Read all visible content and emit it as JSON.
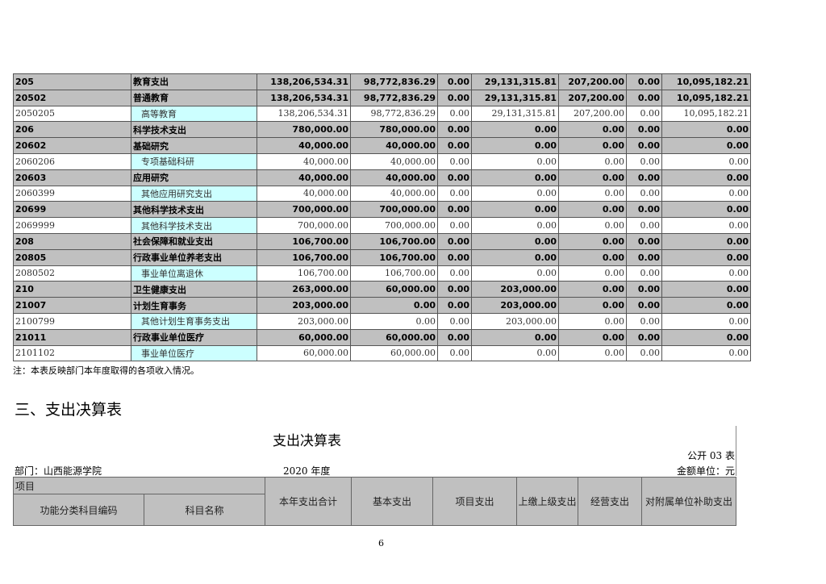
{
  "income_table": {
    "rows": [
      {
        "bold": true,
        "code": "205",
        "name": "教育支出",
        "v": [
          "138,206,534.31",
          "98,772,836.29",
          "0.00",
          "29,131,315.81",
          "207,200.00",
          "0.00",
          "10,095,182.21"
        ]
      },
      {
        "bold": true,
        "code": "20502",
        "name": "普通教育",
        "v": [
          "138,206,534.31",
          "98,772,836.29",
          "0.00",
          "29,131,315.81",
          "207,200.00",
          "0.00",
          "10,095,182.21"
        ]
      },
      {
        "bold": false,
        "code": "2050205",
        "name": "高等教育",
        "v": [
          "138,206,534.31",
          "98,772,836.29",
          "0.00",
          "29,131,315.81",
          "207,200.00",
          "0.00",
          "10,095,182.21"
        ]
      },
      {
        "bold": true,
        "code": "206",
        "name": "科学技术支出",
        "v": [
          "780,000.00",
          "780,000.00",
          "0.00",
          "0.00",
          "0.00",
          "0.00",
          "0.00"
        ]
      },
      {
        "bold": true,
        "code": "20602",
        "name": "基础研究",
        "v": [
          "40,000.00",
          "40,000.00",
          "0.00",
          "0.00",
          "0.00",
          "0.00",
          "0.00"
        ]
      },
      {
        "bold": false,
        "code": "2060206",
        "name": "专项基础科研",
        "v": [
          "40,000.00",
          "40,000.00",
          "0.00",
          "0.00",
          "0.00",
          "0.00",
          "0.00"
        ]
      },
      {
        "bold": true,
        "code": "20603",
        "name": "应用研究",
        "v": [
          "40,000.00",
          "40,000.00",
          "0.00",
          "0.00",
          "0.00",
          "0.00",
          "0.00"
        ]
      },
      {
        "bold": false,
        "code": "2060399",
        "name": "其他应用研究支出",
        "v": [
          "40,000.00",
          "40,000.00",
          "0.00",
          "0.00",
          "0.00",
          "0.00",
          "0.00"
        ]
      },
      {
        "bold": true,
        "code": "20699",
        "name": "其他科学技术支出",
        "v": [
          "700,000.00",
          "700,000.00",
          "0.00",
          "0.00",
          "0.00",
          "0.00",
          "0.00"
        ]
      },
      {
        "bold": false,
        "code": "2069999",
        "name": "其他科学技术支出",
        "v": [
          "700,000.00",
          "700,000.00",
          "0.00",
          "0.00",
          "0.00",
          "0.00",
          "0.00"
        ]
      },
      {
        "bold": true,
        "code": "208",
        "name": "社会保障和就业支出",
        "v": [
          "106,700.00",
          "106,700.00",
          "0.00",
          "0.00",
          "0.00",
          "0.00",
          "0.00"
        ]
      },
      {
        "bold": true,
        "code": "20805",
        "name": "行政事业单位养老支出",
        "v": [
          "106,700.00",
          "106,700.00",
          "0.00",
          "0.00",
          "0.00",
          "0.00",
          "0.00"
        ]
      },
      {
        "bold": false,
        "code": "2080502",
        "name": "事业单位离退休",
        "v": [
          "106,700.00",
          "106,700.00",
          "0.00",
          "0.00",
          "0.00",
          "0.00",
          "0.00"
        ]
      },
      {
        "bold": true,
        "code": "210",
        "name": "卫生健康支出",
        "v": [
          "263,000.00",
          "60,000.00",
          "0.00",
          "203,000.00",
          "0.00",
          "0.00",
          "0.00"
        ]
      },
      {
        "bold": true,
        "code": "21007",
        "name": "计划生育事务",
        "v": [
          "203,000.00",
          "0.00",
          "0.00",
          "203,000.00",
          "0.00",
          "0.00",
          "0.00"
        ]
      },
      {
        "bold": false,
        "code": "2100799",
        "name": "其他计划生育事务支出",
        "v": [
          "203,000.00",
          "0.00",
          "0.00",
          "203,000.00",
          "0.00",
          "0.00",
          "0.00"
        ]
      },
      {
        "bold": true,
        "code": "21011",
        "name": "行政事业单位医疗",
        "v": [
          "60,000.00",
          "60,000.00",
          "0.00",
          "0.00",
          "0.00",
          "0.00",
          "0.00"
        ]
      },
      {
        "bold": false,
        "code": "2101102",
        "name": "事业单位医疗",
        "v": [
          "60,000.00",
          "60,000.00",
          "0.00",
          "0.00",
          "0.00",
          "0.00",
          "0.00"
        ]
      }
    ],
    "note": "注：本表反映部门本年度取得的各项收入情况。"
  },
  "section_heading": "三、支出决算表",
  "expense_table": {
    "title": "支出决算表",
    "table_no": "公开 03 表",
    "department": "部门：山西能源学院",
    "year": "2020 年度",
    "unit": "金额单位：元",
    "headers": {
      "item": "项目",
      "code": "功能分类科目编码",
      "name": "科目名称",
      "cols": [
        "本年支出合计",
        "基本支出",
        "项目支出",
        "上缴上级支出",
        "经营支出",
        "对附属单位补助支出"
      ]
    }
  },
  "page_number": "6"
}
